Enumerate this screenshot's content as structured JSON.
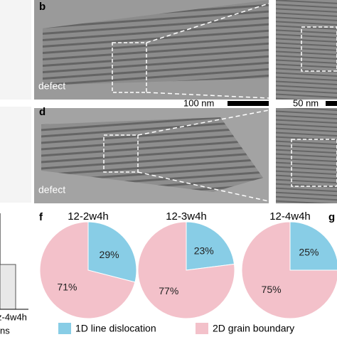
{
  "panels": {
    "b": "b",
    "d": "d",
    "f": "f",
    "g": "g"
  },
  "images": {
    "top_label": "defect",
    "bottom_label": "defect",
    "scale_left": "100 nm",
    "scale_right": "50 nm"
  },
  "left_fragment": {
    "category": "z-4w4h",
    "axis_label": "ns"
  },
  "chart_data": {
    "type": "pie",
    "categories": [
      "1D line dislocation",
      "2D grain boundary"
    ],
    "colors": [
      "#88cde6",
      "#f3c1ca"
    ],
    "pies": [
      {
        "title": "12-2w4h",
        "values": [
          29,
          71
        ],
        "value_labels": [
          "29%",
          "71%"
        ]
      },
      {
        "title": "12-3w4h",
        "values": [
          23,
          77
        ],
        "value_labels": [
          "23%",
          "77%"
        ]
      },
      {
        "title": "12-4w4h",
        "values": [
          25,
          75
        ],
        "value_labels": [
          "25%",
          "75%"
        ]
      }
    ]
  }
}
